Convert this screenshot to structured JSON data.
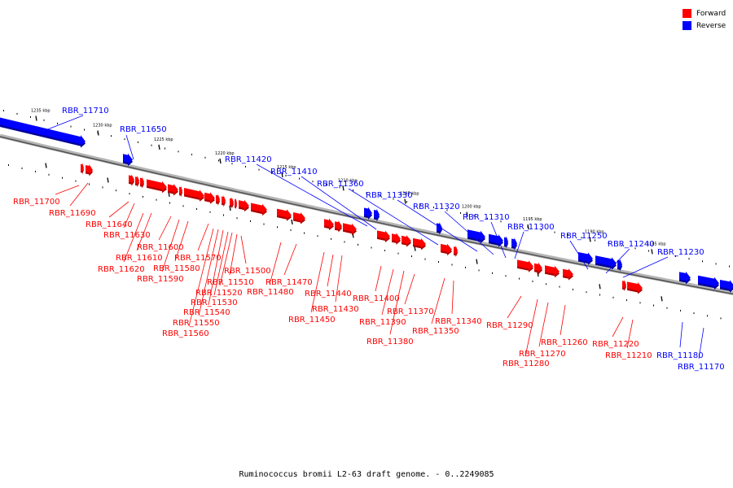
{
  "legend": {
    "forward_label": "Forward",
    "reverse_label": "Reverse",
    "forward_color": "#ff0000",
    "reverse_color": "#0000ff"
  },
  "caption": "Ruminococcus bromii L2-63 draft genome. - 0..2249085",
  "ticks": [
    "1235 kbp",
    "1230 kbp",
    "1225 kbp",
    "1220 kbp",
    "1215 kbp",
    "1210 kbp",
    "1205 kbp",
    "1200 kbp",
    "1195 kbp",
    "1190 kbp",
    "1185 kbp"
  ],
  "forward_genes": [
    "RBR_11700",
    "RBR_11690",
    "RBR_11640",
    "RBR_11630",
    "RBR_11620",
    "RBR_11610",
    "RBR_11600",
    "RBR_11590",
    "RBR_11580",
    "RBR_11570",
    "RBR_11560",
    "RBR_11550",
    "RBR_11540",
    "RBR_11530",
    "RBR_11520",
    "RBR_11510",
    "RBR_11500",
    "RBR_11480",
    "RBR_11470",
    "RBR_11450",
    "RBR_11440",
    "RBR_11430",
    "RBR_11400",
    "RBR_11390",
    "RBR_11380",
    "RBR_11370",
    "RBR_11350",
    "RBR_11340",
    "RBR_11290",
    "RBR_11280",
    "RBR_11270",
    "RBR_11260",
    "RBR_11220",
    "RBR_11210"
  ],
  "reverse_genes": [
    "RBR_11710",
    "RBR_11650",
    "RBR_11420",
    "RBR_11410",
    "RBR_11360",
    "RBR_11330",
    "RBR_11320",
    "RBR_11310",
    "RBR_11300",
    "RBR_11250",
    "RBR_11240",
    "RBR_11230",
    "RBR_11180",
    "RBR_11170"
  ]
}
